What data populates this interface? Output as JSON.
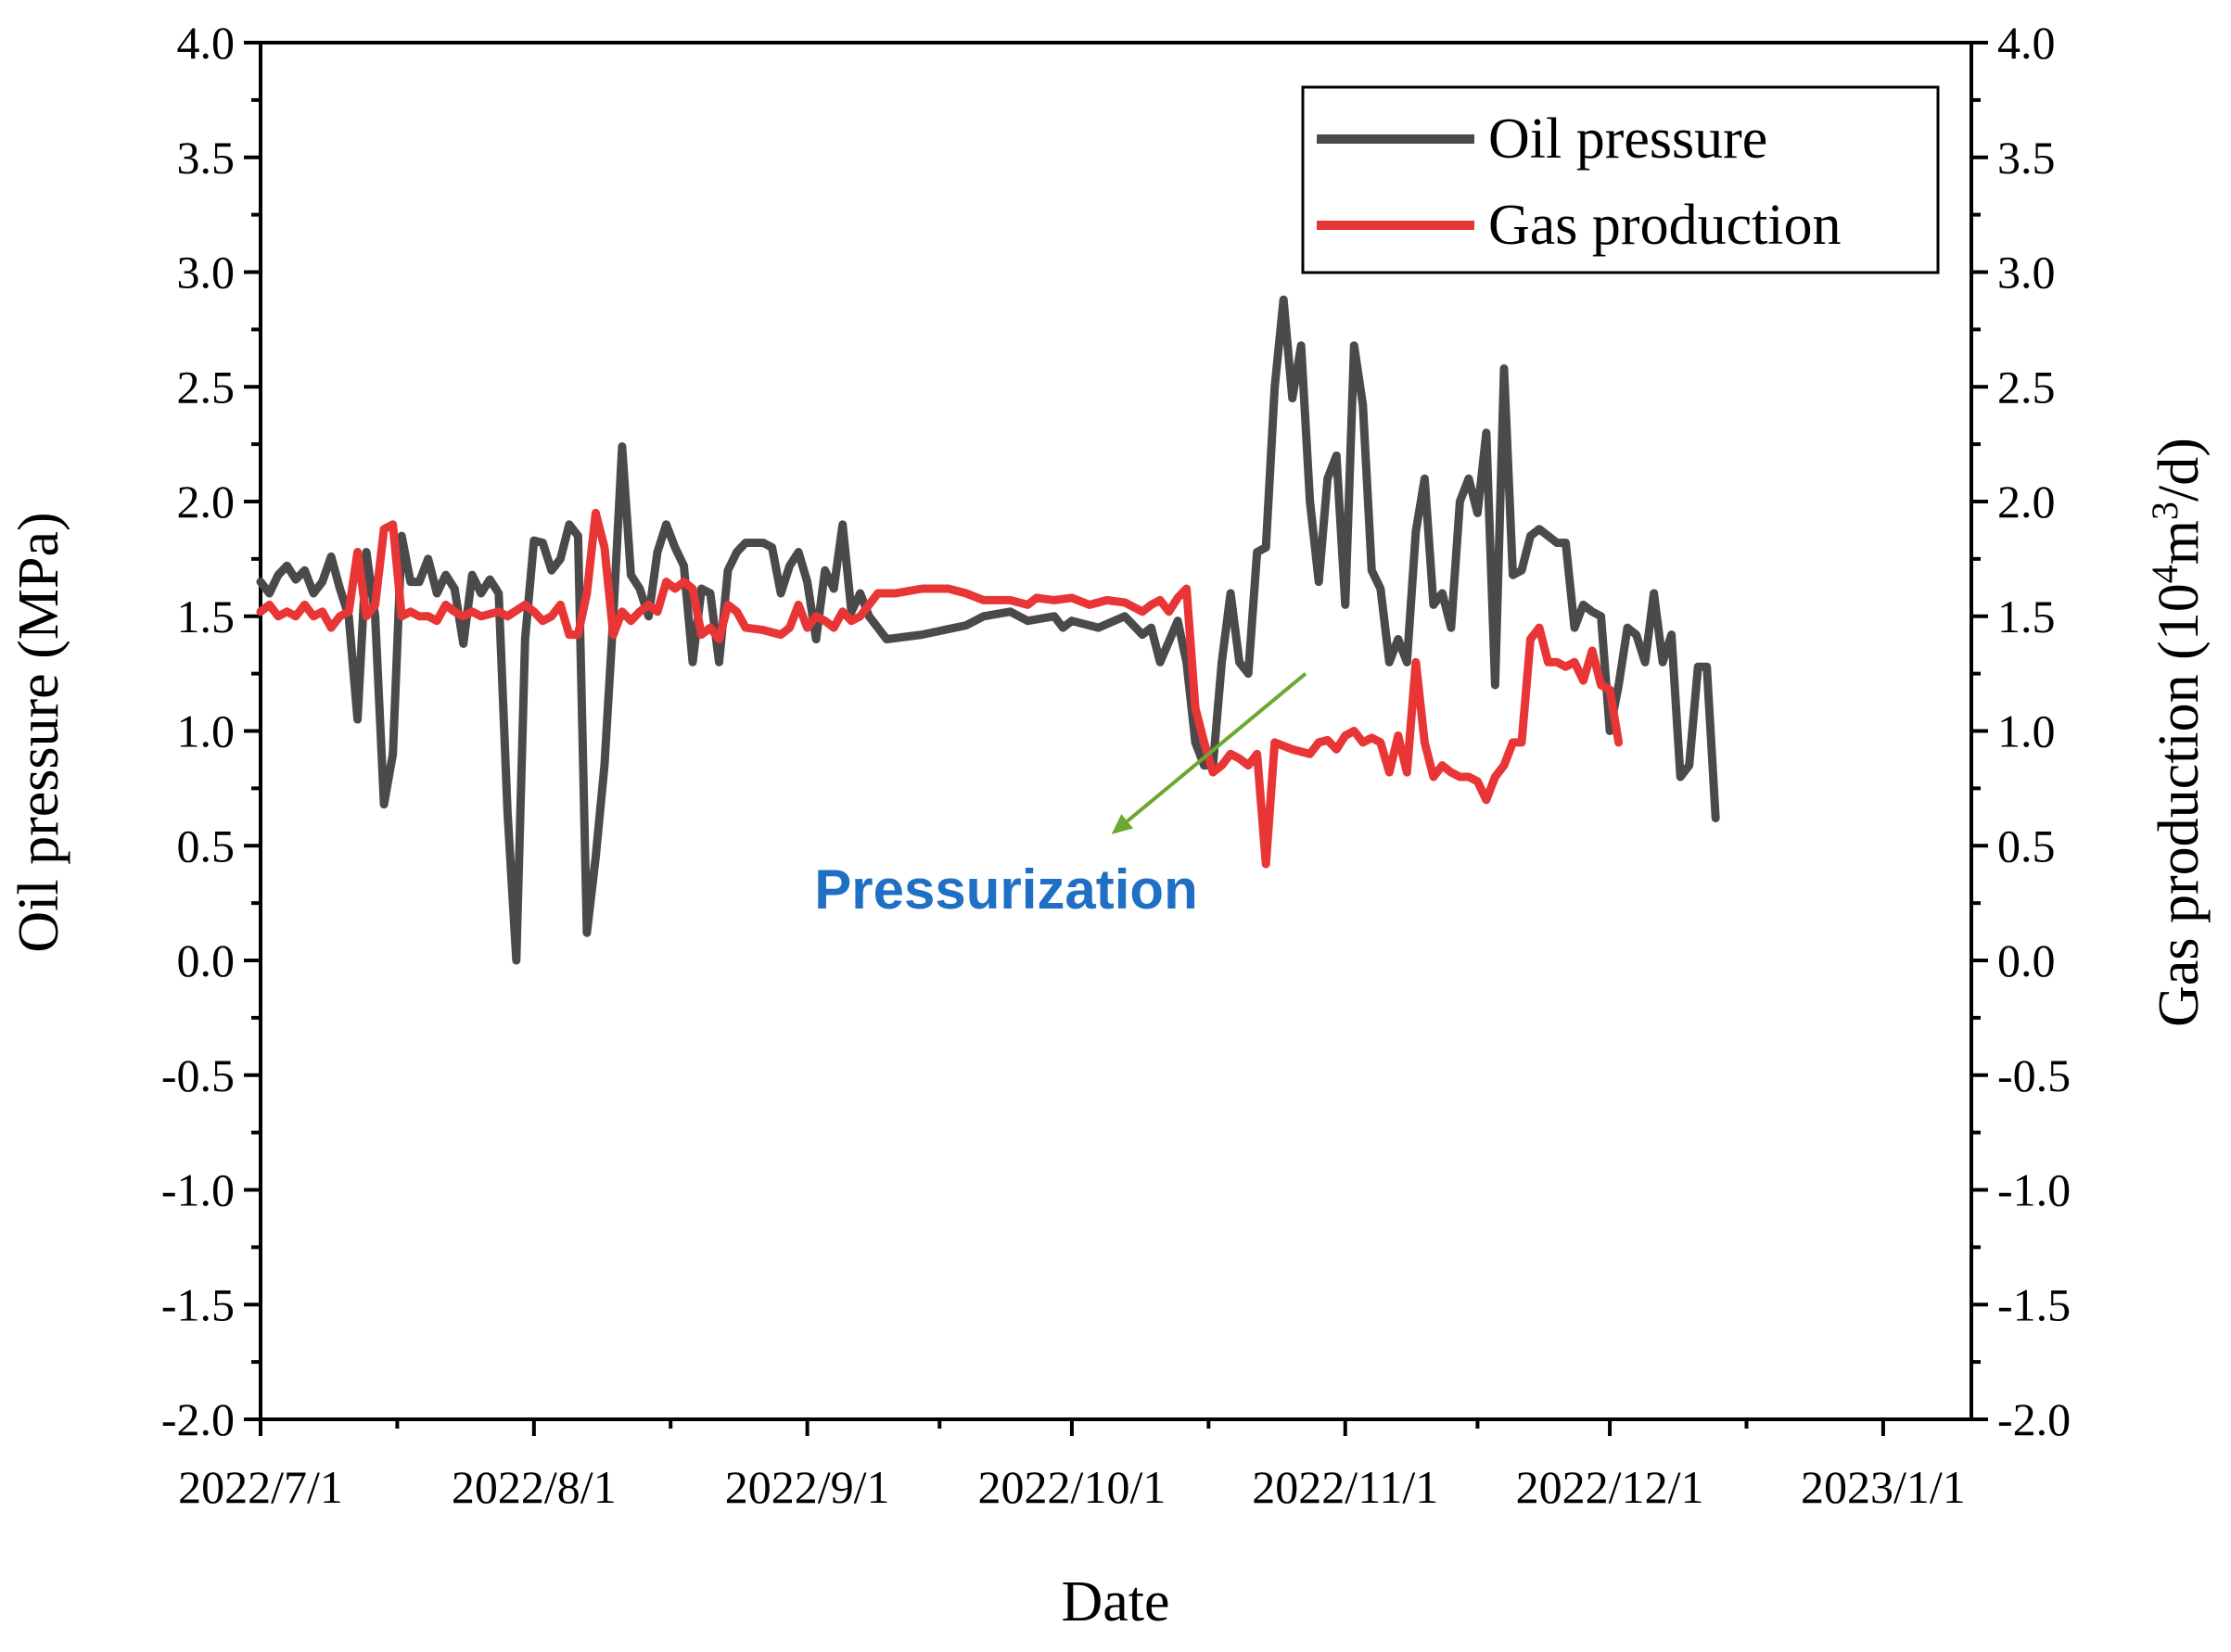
{
  "chart_data": {
    "type": "line",
    "title": "",
    "xlabel": "Date",
    "ylabel": "Oil pressure (MPa)",
    "y2label": {
      "main": "Gas production (10",
      "sup": "4",
      "mid": "m",
      "sup2": "3",
      "end": "/d)"
    },
    "xlim": [
      0,
      194
    ],
    "ylim": [
      -2.0,
      4.0
    ],
    "y2lim": [
      -2.0,
      4.0
    ],
    "yticks": [
      "4.0",
      "3.5",
      "3.0",
      "2.5",
      "2.0",
      "1.5",
      "1.0",
      "0.5",
      "0.0",
      "-0.5",
      "-1.0",
      "-1.5",
      "-2.0"
    ],
    "y2ticks": [
      "4.0",
      "3.5",
      "3.0",
      "2.5",
      "2.0",
      "1.5",
      "1.0",
      "0.5",
      "0.0",
      "-0.5",
      "-1.0",
      "-1.5",
      "-2.0"
    ],
    "xticks": [
      {
        "day": 0,
        "label": "2022/7/1"
      },
      {
        "day": 31,
        "label": "2022/8/1"
      },
      {
        "day": 62,
        "label": "2022/9/1"
      },
      {
        "day": 92,
        "label": "2022/10/1"
      },
      {
        "day": 123,
        "label": "2022/11/1"
      },
      {
        "day": 153,
        "label": "2022/12/1"
      },
      {
        "day": 184,
        "label": "2023/1/1"
      }
    ],
    "legend_position": "top-right",
    "annotation": {
      "text": "Pressurization",
      "color": "#1f6fc4",
      "arrow_color": "#6aa832",
      "arrow_from": [
        118.5,
        1.25
      ],
      "arrow_to": [
        96.5,
        0.55
      ]
    },
    "series": [
      {
        "name": "Oil pressure",
        "color": "#4a4a4a",
        "axis": "left",
        "points": [
          [
            0,
            1.65
          ],
          [
            1,
            1.6
          ],
          [
            2,
            1.68
          ],
          [
            3,
            1.72
          ],
          [
            4,
            1.66
          ],
          [
            5,
            1.7
          ],
          [
            6,
            1.6
          ],
          [
            7,
            1.65
          ],
          [
            8,
            1.76
          ],
          [
            9,
            1.62
          ],
          [
            10,
            1.5
          ],
          [
            11,
            1.05
          ],
          [
            12,
            1.78
          ],
          [
            13,
            1.5
          ],
          [
            14,
            0.68
          ],
          [
            15,
            0.9
          ],
          [
            16,
            1.85
          ],
          [
            17,
            1.65
          ],
          [
            18,
            1.65
          ],
          [
            19,
            1.75
          ],
          [
            20,
            1.6
          ],
          [
            21,
            1.68
          ],
          [
            22,
            1.62
          ],
          [
            23,
            1.38
          ],
          [
            24,
            1.68
          ],
          [
            25,
            1.6
          ],
          [
            26,
            1.66
          ],
          [
            27,
            1.6
          ],
          [
            28,
            0.65
          ],
          [
            29,
            0.0
          ],
          [
            30,
            1.4
          ],
          [
            31,
            1.83
          ],
          [
            32,
            1.82
          ],
          [
            33,
            1.7
          ],
          [
            34,
            1.75
          ],
          [
            35,
            1.9
          ],
          [
            36,
            1.85
          ],
          [
            37,
            0.12
          ],
          [
            38,
            0.45
          ],
          [
            39,
            0.85
          ],
          [
            40,
            1.5
          ],
          [
            41,
            2.24
          ],
          [
            42,
            1.68
          ],
          [
            43,
            1.62
          ],
          [
            44,
            1.5
          ],
          [
            45,
            1.78
          ],
          [
            46,
            1.9
          ],
          [
            47,
            1.8
          ],
          [
            48,
            1.72
          ],
          [
            49,
            1.3
          ],
          [
            50,
            1.62
          ],
          [
            51,
            1.6
          ],
          [
            52,
            1.3
          ],
          [
            53,
            1.7
          ],
          [
            54,
            1.78
          ],
          [
            55,
            1.82
          ],
          [
            56,
            1.82
          ],
          [
            57,
            1.82
          ],
          [
            58,
            1.8
          ],
          [
            59,
            1.6
          ],
          [
            60,
            1.72
          ],
          [
            61,
            1.78
          ],
          [
            62,
            1.65
          ],
          [
            63,
            1.4
          ],
          [
            64,
            1.7
          ],
          [
            65,
            1.62
          ],
          [
            66,
            1.9
          ],
          [
            67,
            1.52
          ],
          [
            68,
            1.6
          ],
          [
            69,
            1.5
          ],
          [
            70,
            1.45
          ],
          [
            71,
            1.4
          ],
          [
            75,
            1.42
          ],
          [
            80,
            1.46
          ],
          [
            82,
            1.5
          ],
          [
            85,
            1.52
          ],
          [
            87,
            1.48
          ],
          [
            90,
            1.5
          ],
          [
            91,
            1.45
          ],
          [
            92,
            1.48
          ],
          [
            95,
            1.45
          ],
          [
            98,
            1.5
          ],
          [
            100,
            1.42
          ],
          [
            101,
            1.45
          ],
          [
            102,
            1.3
          ],
          [
            104,
            1.48
          ],
          [
            105,
            1.3
          ],
          [
            106,
            0.95
          ],
          [
            107,
            0.85
          ],
          [
            108,
            0.85
          ],
          [
            109,
            1.3
          ],
          [
            110,
            1.6
          ],
          [
            111,
            1.3
          ],
          [
            112,
            1.25
          ],
          [
            113,
            1.78
          ],
          [
            114,
            1.8
          ],
          [
            115,
            2.5
          ],
          [
            116,
            2.88
          ],
          [
            117,
            2.45
          ],
          [
            118,
            2.68
          ],
          [
            119,
            2.0
          ],
          [
            120,
            1.65
          ],
          [
            121,
            2.1
          ],
          [
            122,
            2.2
          ],
          [
            123,
            1.55
          ],
          [
            124,
            2.68
          ],
          [
            125,
            2.42
          ],
          [
            126,
            1.7
          ],
          [
            127,
            1.62
          ],
          [
            128,
            1.3
          ],
          [
            129,
            1.4
          ],
          [
            130,
            1.3
          ],
          [
            131,
            1.87
          ],
          [
            132,
            2.1
          ],
          [
            133,
            1.55
          ],
          [
            134,
            1.6
          ],
          [
            135,
            1.45
          ],
          [
            136,
            2.0
          ],
          [
            137,
            2.1
          ],
          [
            138,
            1.95
          ],
          [
            139,
            2.3
          ],
          [
            140,
            1.2
          ],
          [
            141,
            2.58
          ],
          [
            142,
            1.68
          ],
          [
            143,
            1.7
          ],
          [
            144,
            1.85
          ],
          [
            145,
            1.88
          ],
          [
            146,
            1.85
          ],
          [
            147,
            1.82
          ],
          [
            148,
            1.82
          ],
          [
            149,
            1.45
          ],
          [
            150,
            1.55
          ],
          [
            151,
            1.52
          ],
          [
            152,
            1.5
          ],
          [
            153,
            1.0
          ],
          [
            154,
            1.2
          ],
          [
            155,
            1.45
          ],
          [
            156,
            1.42
          ],
          [
            157,
            1.3
          ],
          [
            158,
            1.6
          ],
          [
            159,
            1.3
          ],
          [
            160,
            1.42
          ],
          [
            161,
            0.8
          ],
          [
            162,
            0.85
          ],
          [
            163,
            1.28
          ],
          [
            164,
            1.28
          ],
          [
            165,
            0.62
          ]
        ]
      },
      {
        "name": "Gas production",
        "color": "#e83535",
        "axis": "right",
        "points": [
          [
            0,
            1.52
          ],
          [
            1,
            1.55
          ],
          [
            2,
            1.5
          ],
          [
            3,
            1.52
          ],
          [
            4,
            1.5
          ],
          [
            5,
            1.55
          ],
          [
            6,
            1.5
          ],
          [
            7,
            1.52
          ],
          [
            8,
            1.45
          ],
          [
            9,
            1.5
          ],
          [
            10,
            1.52
          ],
          [
            11,
            1.78
          ],
          [
            12,
            1.5
          ],
          [
            13,
            1.55
          ],
          [
            14,
            1.88
          ],
          [
            15,
            1.9
          ],
          [
            16,
            1.5
          ],
          [
            17,
            1.52
          ],
          [
            18,
            1.5
          ],
          [
            19,
            1.5
          ],
          [
            20,
            1.48
          ],
          [
            21,
            1.55
          ],
          [
            22,
            1.52
          ],
          [
            23,
            1.5
          ],
          [
            24,
            1.52
          ],
          [
            25,
            1.5
          ],
          [
            27,
            1.52
          ],
          [
            28,
            1.5
          ],
          [
            30,
            1.55
          ],
          [
            31,
            1.52
          ],
          [
            32,
            1.48
          ],
          [
            33,
            1.5
          ],
          [
            34,
            1.55
          ],
          [
            35,
            1.42
          ],
          [
            36,
            1.42
          ],
          [
            37,
            1.6
          ],
          [
            38,
            1.95
          ],
          [
            39,
            1.8
          ],
          [
            40,
            1.42
          ],
          [
            41,
            1.52
          ],
          [
            42,
            1.48
          ],
          [
            43,
            1.52
          ],
          [
            44,
            1.55
          ],
          [
            45,
            1.52
          ],
          [
            46,
            1.65
          ],
          [
            47,
            1.62
          ],
          [
            48,
            1.65
          ],
          [
            49,
            1.62
          ],
          [
            50,
            1.42
          ],
          [
            51,
            1.45
          ],
          [
            52,
            1.4
          ],
          [
            53,
            1.55
          ],
          [
            54,
            1.52
          ],
          [
            55,
            1.45
          ],
          [
            57,
            1.44
          ],
          [
            59,
            1.42
          ],
          [
            60,
            1.45
          ],
          [
            61,
            1.55
          ],
          [
            62,
            1.45
          ],
          [
            63,
            1.5
          ],
          [
            64,
            1.48
          ],
          [
            65,
            1.45
          ],
          [
            66,
            1.52
          ],
          [
            67,
            1.48
          ],
          [
            68,
            1.5
          ],
          [
            69,
            1.55
          ],
          [
            70,
            1.6
          ],
          [
            72,
            1.6
          ],
          [
            75,
            1.62
          ],
          [
            78,
            1.62
          ],
          [
            80,
            1.6
          ],
          [
            82,
            1.57
          ],
          [
            85,
            1.57
          ],
          [
            87,
            1.55
          ],
          [
            88,
            1.58
          ],
          [
            90,
            1.57
          ],
          [
            92,
            1.58
          ],
          [
            94,
            1.55
          ],
          [
            96,
            1.57
          ],
          [
            98,
            1.56
          ],
          [
            100,
            1.52
          ],
          [
            101,
            1.55
          ],
          [
            102,
            1.57
          ],
          [
            103,
            1.52
          ],
          [
            104,
            1.58
          ],
          [
            105,
            1.62
          ],
          [
            106,
            1.1
          ],
          [
            107,
            0.95
          ],
          [
            108,
            0.82
          ],
          [
            109,
            0.85
          ],
          [
            110,
            0.9
          ],
          [
            111,
            0.88
          ],
          [
            112,
            0.85
          ],
          [
            113,
            0.9
          ],
          [
            114,
            0.42
          ],
          [
            115,
            0.95
          ],
          [
            117,
            0.92
          ],
          [
            119,
            0.9
          ],
          [
            120,
            0.95
          ],
          [
            121,
            0.96
          ],
          [
            122,
            0.92
          ],
          [
            123,
            0.98
          ],
          [
            124,
            1.0
          ],
          [
            125,
            0.95
          ],
          [
            126,
            0.97
          ],
          [
            127,
            0.95
          ],
          [
            128,
            0.82
          ],
          [
            129,
            0.98
          ],
          [
            130,
            0.82
          ],
          [
            131,
            1.3
          ],
          [
            132,
            0.95
          ],
          [
            133,
            0.8
          ],
          [
            134,
            0.85
          ],
          [
            135,
            0.82
          ],
          [
            136,
            0.8
          ],
          [
            137,
            0.8
          ],
          [
            138,
            0.78
          ],
          [
            139,
            0.7
          ],
          [
            140,
            0.8
          ],
          [
            141,
            0.85
          ],
          [
            142,
            0.95
          ],
          [
            143,
            0.95
          ],
          [
            144,
            1.4
          ],
          [
            145,
            1.45
          ],
          [
            146,
            1.3
          ],
          [
            147,
            1.3
          ],
          [
            148,
            1.28
          ],
          [
            149,
            1.3
          ],
          [
            150,
            1.22
          ],
          [
            151,
            1.35
          ],
          [
            152,
            1.2
          ],
          [
            153,
            1.18
          ],
          [
            154,
            0.95
          ]
        ]
      }
    ]
  }
}
